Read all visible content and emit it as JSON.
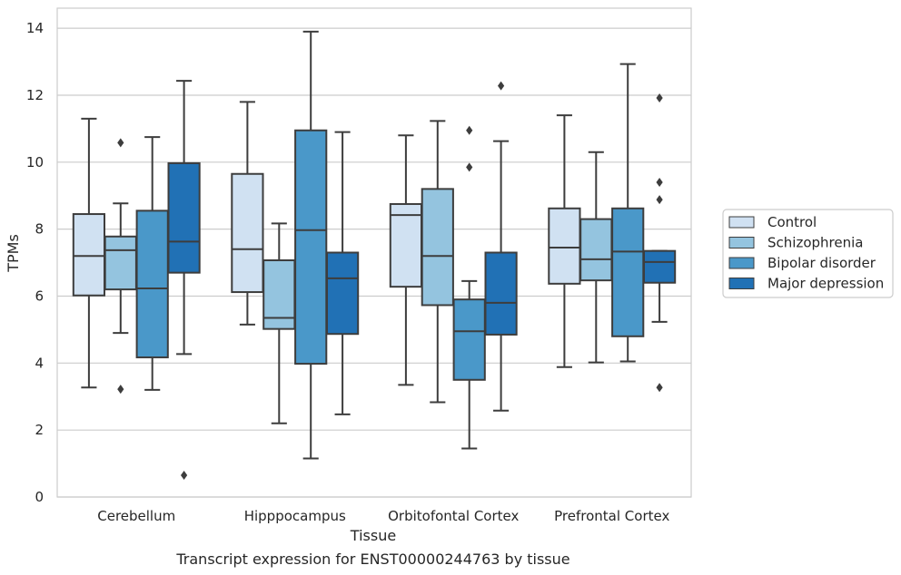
{
  "chart_data": {
    "type": "box",
    "xlabel": "Tissue",
    "ylabel": "TPMs",
    "caption": "Transcript expression for ENST00000244763 by tissue",
    "ylim": [
      0,
      14.6
    ],
    "yticks": [
      0,
      2,
      4,
      6,
      8,
      10,
      12,
      14
    ],
    "grid": "horizontal",
    "legend_position": "right",
    "categories": [
      "Cerebellum",
      "Hipppocampus",
      "Orbitofontal Cortex",
      "Prefrontal Cortex"
    ],
    "series": [
      {
        "name": "Control",
        "color": "#d0e1f2",
        "boxes": [
          {
            "whislo": 3.27,
            "q1": 6.02,
            "med": 7.2,
            "q3": 8.45,
            "whishi": 11.3,
            "fliers": []
          },
          {
            "whislo": 5.15,
            "q1": 6.12,
            "med": 7.4,
            "q3": 9.65,
            "whishi": 11.8,
            "fliers": []
          },
          {
            "whislo": 3.35,
            "q1": 6.28,
            "med": 8.42,
            "q3": 8.75,
            "whishi": 10.8,
            "fliers": []
          },
          {
            "whislo": 3.88,
            "q1": 6.37,
            "med": 7.45,
            "q3": 8.62,
            "whishi": 11.4,
            "fliers": []
          }
        ]
      },
      {
        "name": "Schizophrenia",
        "color": "#94c4df",
        "boxes": [
          {
            "whislo": 4.9,
            "q1": 6.2,
            "med": 7.37,
            "q3": 7.78,
            "whishi": 8.77,
            "fliers": [
              3.22,
              10.58
            ]
          },
          {
            "whislo": 2.2,
            "q1": 5.02,
            "med": 5.35,
            "q3": 7.07,
            "whishi": 8.17,
            "fliers": []
          },
          {
            "whislo": 2.83,
            "q1": 5.73,
            "med": 7.2,
            "q3": 9.2,
            "whishi": 11.23,
            "fliers": []
          },
          {
            "whislo": 4.02,
            "q1": 6.47,
            "med": 7.1,
            "q3": 8.3,
            "whishi": 10.3,
            "fliers": []
          }
        ]
      },
      {
        "name": "Bipolar disorder",
        "color": "#4a98c9",
        "boxes": [
          {
            "whislo": 3.2,
            "q1": 4.17,
            "med": 6.23,
            "q3": 8.55,
            "whishi": 10.75,
            "fliers": []
          },
          {
            "whislo": 1.15,
            "q1": 3.98,
            "med": 7.97,
            "q3": 10.95,
            "whishi": 13.9,
            "fliers": []
          },
          {
            "whislo": 1.45,
            "q1": 3.5,
            "med": 4.95,
            "q3": 5.9,
            "whishi": 6.45,
            "fliers": [
              9.85,
              10.95
            ]
          },
          {
            "whislo": 4.05,
            "q1": 4.8,
            "med": 7.33,
            "q3": 8.62,
            "whishi": 12.93,
            "fliers": []
          }
        ]
      },
      {
        "name": "Major depression",
        "color": "#2171b5",
        "boxes": [
          {
            "whislo": 4.27,
            "q1": 6.7,
            "med": 7.63,
            "q3": 9.97,
            "whishi": 12.43,
            "fliers": [
              0.65
            ]
          },
          {
            "whislo": 2.47,
            "q1": 4.87,
            "med": 6.53,
            "q3": 7.3,
            "whishi": 10.9,
            "fliers": []
          },
          {
            "whislo": 2.58,
            "q1": 4.85,
            "med": 5.8,
            "q3": 7.3,
            "whishi": 10.63,
            "fliers": [
              12.28
            ]
          },
          {
            "whislo": 5.23,
            "q1": 6.4,
            "med": 7.02,
            "q3": 7.35,
            "whishi": 7.35,
            "fliers": [
              3.27,
              8.88,
              9.4,
              11.92
            ]
          }
        ]
      }
    ]
  }
}
